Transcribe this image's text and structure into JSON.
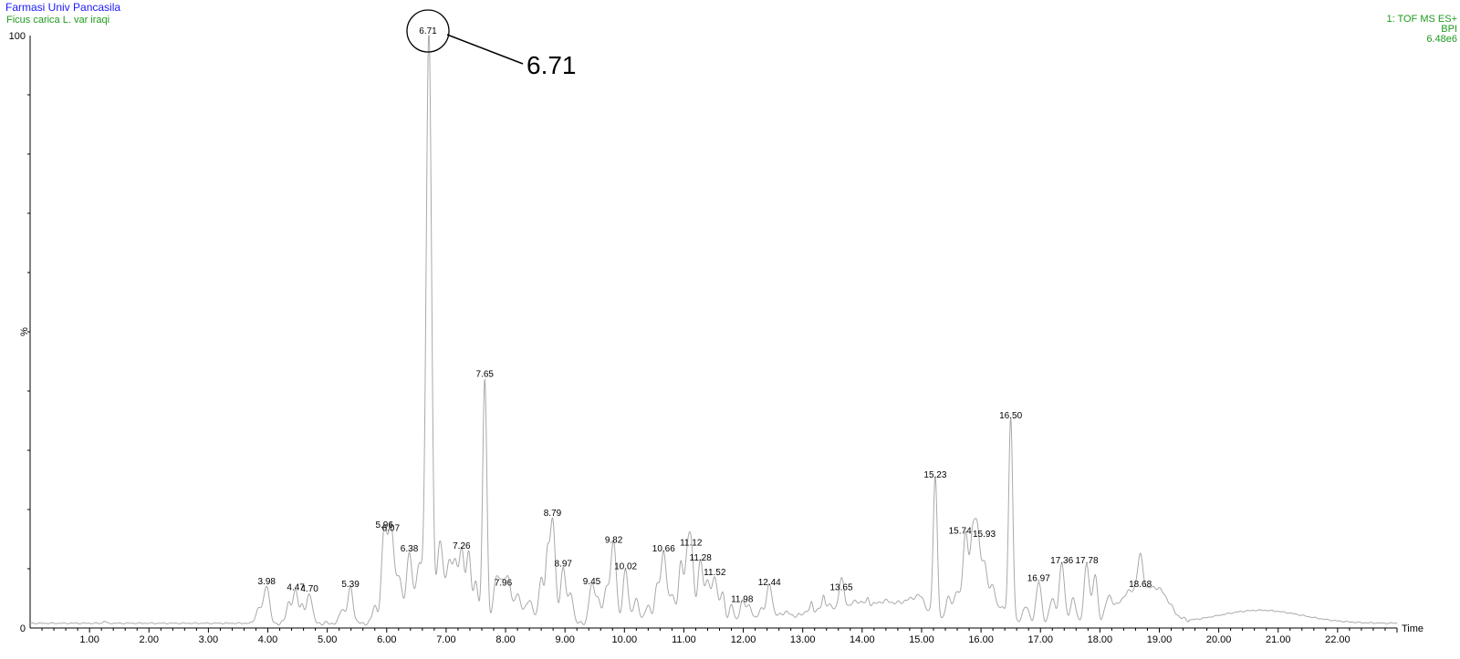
{
  "header": {
    "title": "Farmasi Univ Pancasila",
    "sample": "Ficus carica L. var iraqi",
    "detector": "1: TOF MS ES+",
    "trace": "BPI",
    "intensity": "6.48e6"
  },
  "colors": {
    "trace": "#a9a9a9",
    "title": "#1a1aff",
    "meta": "#1e9a1e"
  },
  "chart_data": {
    "type": "line",
    "xlabel": "Time",
    "ylabel": "%",
    "xlim": [
      0,
      23.0
    ],
    "ylim": [
      0,
      100
    ],
    "x_ticks": [
      "1.00",
      "2.00",
      "3.00",
      "4.00",
      "5.00",
      "6.00",
      "7.00",
      "8.00",
      "9.00",
      "10.00",
      "11.00",
      "12.00",
      "13.00",
      "14.00",
      "15.00",
      "16.00",
      "17.00",
      "18.00",
      "19.00",
      "20.00",
      "21.00",
      "22.00"
    ],
    "y_ticks": [
      "0",
      "100"
    ],
    "grid": false,
    "baseline": 0.8,
    "peaks": [
      {
        "rt": 3.98,
        "height": 6.5,
        "label": "3.98"
      },
      {
        "rt": 4.47,
        "height": 5.5,
        "label": "4.47"
      },
      {
        "rt": 4.7,
        "height": 5.2,
        "label": "4.70"
      },
      {
        "rt": 5.39,
        "height": 6.0,
        "label": "5.39"
      },
      {
        "rt": 5.96,
        "height": 16.0,
        "label": "5.96"
      },
      {
        "rt": 6.07,
        "height": 15.5,
        "label": "6.07"
      },
      {
        "rt": 6.38,
        "height": 12.0,
        "label": "6.38"
      },
      {
        "rt": 6.71,
        "height": 100,
        "label": "6.71"
      },
      {
        "rt": 7.26,
        "height": 12.5,
        "label": "7.26"
      },
      {
        "rt": 7.65,
        "height": 41.5,
        "label": "7.65"
      },
      {
        "rt": 7.96,
        "height": 6.2,
        "label": "7.96"
      },
      {
        "rt": 8.79,
        "height": 18.0,
        "label": "8.79"
      },
      {
        "rt": 8.97,
        "height": 9.5,
        "label": "8.97"
      },
      {
        "rt": 9.45,
        "height": 6.5,
        "label": "9.45"
      },
      {
        "rt": 9.82,
        "height": 13.5,
        "label": "9.82"
      },
      {
        "rt": 10.02,
        "height": 9.0,
        "label": "10.02"
      },
      {
        "rt": 10.66,
        "height": 12.0,
        "label": "10.66"
      },
      {
        "rt": 11.12,
        "height": 13.0,
        "label": "11.12"
      },
      {
        "rt": 11.28,
        "height": 10.5,
        "label": "11.28"
      },
      {
        "rt": 11.52,
        "height": 8.0,
        "label": "11.52"
      },
      {
        "rt": 11.98,
        "height": 3.5,
        "label": "11.98"
      },
      {
        "rt": 12.44,
        "height": 6.3,
        "label": "12.44"
      },
      {
        "rt": 13.65,
        "height": 5.5,
        "label": "13.65"
      },
      {
        "rt": 15.23,
        "height": 24.5,
        "label": "15.23"
      },
      {
        "rt": 15.74,
        "height": 15.0,
        "label": "15.74"
      },
      {
        "rt": 15.93,
        "height": 14.5,
        "label": "15.93"
      },
      {
        "rt": 16.5,
        "height": 34.5,
        "label": "16.50"
      },
      {
        "rt": 16.97,
        "height": 7.0,
        "label": "16.97"
      },
      {
        "rt": 17.36,
        "height": 10.0,
        "label": "17.36"
      },
      {
        "rt": 17.78,
        "height": 10.0,
        "label": "17.78"
      },
      {
        "rt": 18.68,
        "height": 6.0,
        "label": "18.68"
      }
    ],
    "annotation": {
      "label": "6.71",
      "rt": 6.71
    }
  }
}
